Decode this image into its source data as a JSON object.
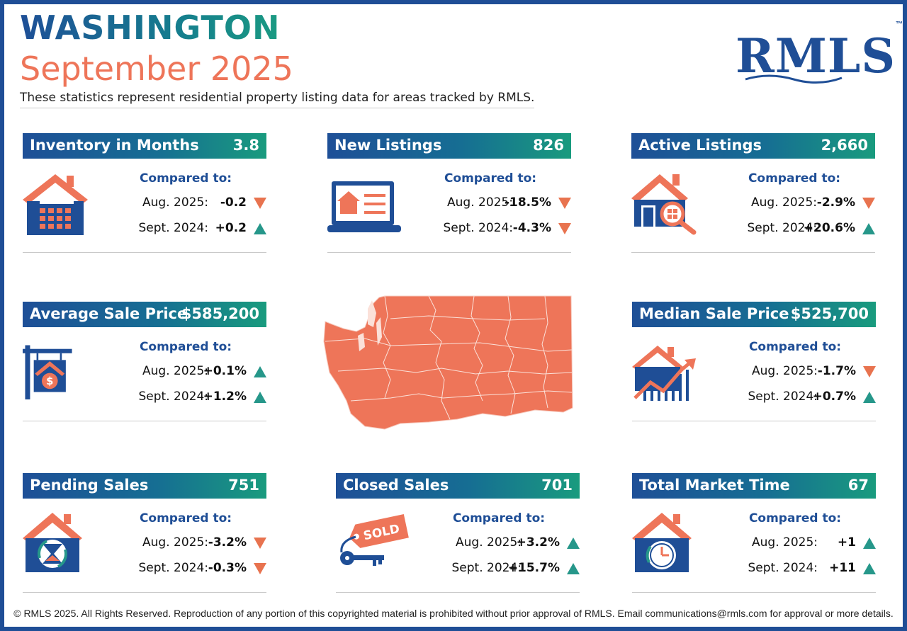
{
  "header": {
    "title": "WASHINGTON",
    "period": "September 2025",
    "subtitle": "These statistics represent residential property listing data for areas tracked by RMLS.",
    "logo": "RMLS",
    "logo_tm": "™"
  },
  "colors": {
    "brand_blue": "#1f4e96",
    "teal": "#199b7e",
    "coral": "#ee7559",
    "down_arrow": "#e8734f",
    "up_arrow": "#26978a"
  },
  "compared_label": "Compared to:",
  "cards": [
    {
      "title": "Inventory in Months",
      "value": "3.8",
      "icon": "house-calendar-icon",
      "rows": [
        {
          "label": "Aug. 2025:",
          "value": "-0.2",
          "direction": "down"
        },
        {
          "label": "Sept. 2024:",
          "value": "+0.2",
          "direction": "up"
        }
      ]
    },
    {
      "title": "New Listings",
      "value": "826",
      "icon": "laptop-listing-icon",
      "rows": [
        {
          "label": "Aug. 2025:",
          "value": "-18.5%",
          "direction": "down"
        },
        {
          "label": "Sept. 2024:",
          "value": "-4.3%",
          "direction": "down"
        }
      ]
    },
    {
      "title": "Active Listings",
      "value": "2,660",
      "icon": "house-magnifier-icon",
      "rows": [
        {
          "label": "Aug. 2025:",
          "value": "-2.9%",
          "direction": "down"
        },
        {
          "label": "Sept. 2024:",
          "value": "+20.6%",
          "direction": "up"
        }
      ]
    },
    {
      "title": "Average Sale Price",
      "value": "$585,200",
      "icon": "house-sign-dollar-icon",
      "rows": [
        {
          "label": "Aug. 2025:",
          "value": "+0.1%",
          "direction": "up"
        },
        {
          "label": "Sept. 2024:",
          "value": "+1.2%",
          "direction": "up"
        }
      ]
    },
    {
      "title": "Median Sale Price",
      "value": "$525,700",
      "icon": "house-growth-chart-icon",
      "rows": [
        {
          "label": "Aug. 2025:",
          "value": "-1.7%",
          "direction": "down"
        },
        {
          "label": "Sept. 2024:",
          "value": "+0.7%",
          "direction": "up"
        }
      ]
    },
    {
      "title": "Pending Sales",
      "value": "751",
      "icon": "house-hourglass-icon",
      "rows": [
        {
          "label": "Aug. 2025:",
          "value": "-3.2%",
          "direction": "down"
        },
        {
          "label": "Sept. 2024:",
          "value": "-0.3%",
          "direction": "down"
        }
      ]
    },
    {
      "title": "Closed Sales",
      "value": "701",
      "icon": "sold-tag-keys-icon",
      "rows": [
        {
          "label": "Aug. 2025:",
          "value": "+3.2%",
          "direction": "up"
        },
        {
          "label": "Sept. 2024:",
          "value": "+15.7%",
          "direction": "up"
        }
      ]
    },
    {
      "title": "Total Market Time",
      "value": "67",
      "icon": "house-clock-icon",
      "rows": [
        {
          "label": "Aug. 2025:",
          "value": "+1",
          "direction": "up"
        },
        {
          "label": "Sept. 2024:",
          "value": "+11",
          "direction": "up"
        }
      ]
    }
  ],
  "sold_tag_text": "SOLD",
  "map_icon": "washington-county-map",
  "footer": "© RMLS 2025. All Rights Reserved. Reproduction of any portion of this copyrighted material is prohibited without prior approval of RMLS. Email communications@rmls.com for approval or more details."
}
